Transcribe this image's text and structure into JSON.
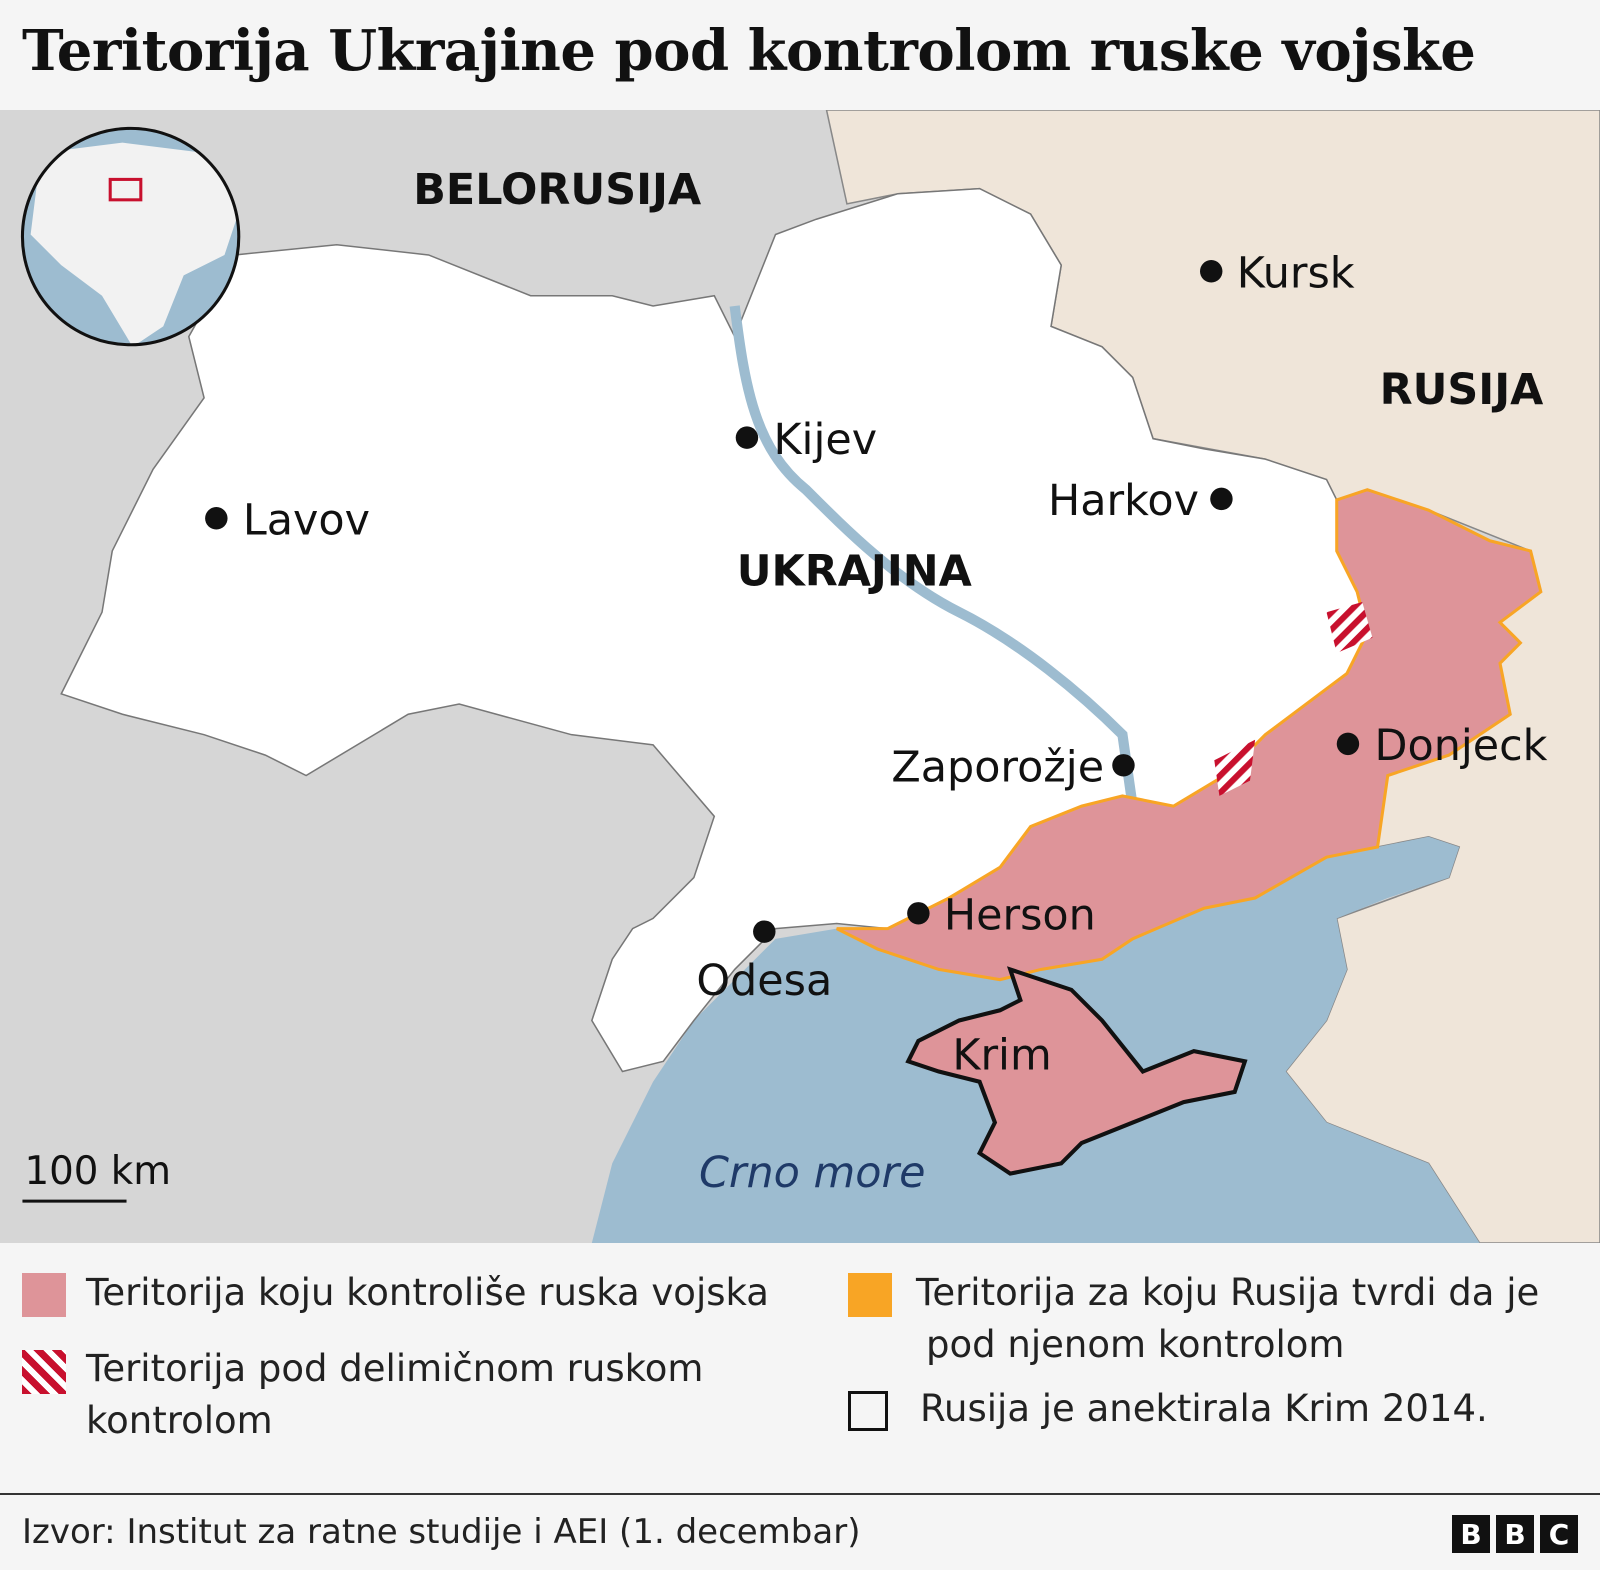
{
  "title": "Teritorija Ukrajine pod kontrolom ruske vojske",
  "map": {
    "countries": {
      "belarus": "BELORUSIJA",
      "russia": "RUSIJA",
      "ukraine": "UKRAJINA"
    },
    "cities": {
      "kursk": "Kursk",
      "kyiv": "Kijev",
      "lviv": "Lavov",
      "kharkiv": "Harkov",
      "zaporizhzhia": "Zaporožje",
      "donetsk": "Donjeck",
      "kherson": "Herson",
      "odesa": "Odesa",
      "crimea": "Krim"
    },
    "sea": "Crno more",
    "scale": "100 km",
    "colors": {
      "russian_controlled": "#de9499",
      "claimed": "#f8a525",
      "sea": "#9dbcd0",
      "russia_land": "#efe5d9",
      "other_land": "#d6d6d6",
      "ukraine": "#ffffff",
      "hatch": "#c8102e"
    }
  },
  "legend": {
    "controlled": "Teritorija koju kontroliše ruska vojska",
    "partial_line1": "Teritorija pod delimičnom ruskom",
    "partial_line2": "kontrolom",
    "claimed_line1": "Teritorija za koju Rusija tvrdi da je",
    "claimed_line2": "pod njenom kontrolom",
    "annexed": "Rusija je anektirala Krim 2014."
  },
  "footer": {
    "source": "Izvor: Institut za ratne studije i AEI (1. decembar)",
    "logo": [
      "B",
      "B",
      "C"
    ]
  }
}
